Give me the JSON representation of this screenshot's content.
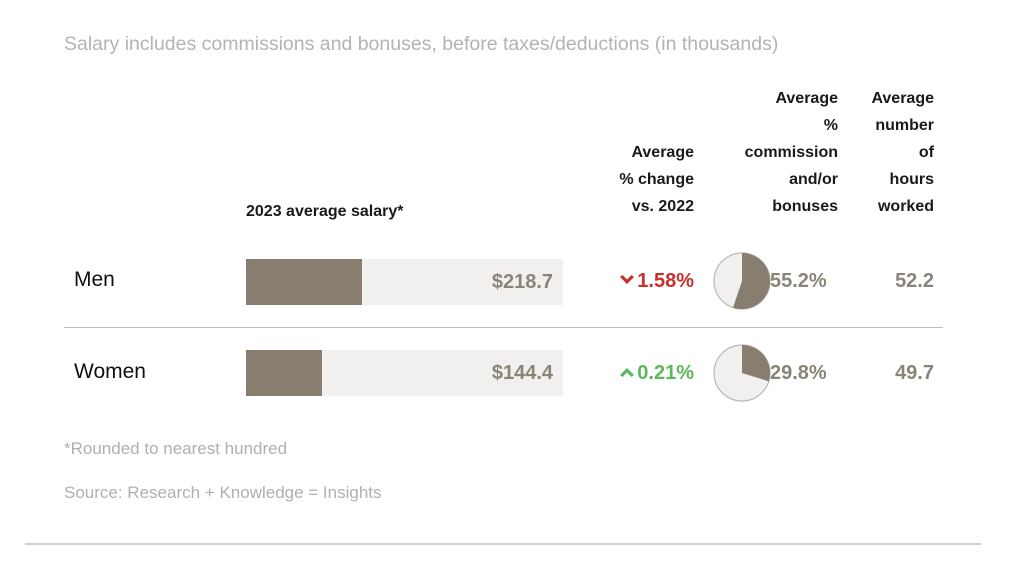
{
  "subtitle": "Salary includes commissions and bonuses, before taxes/deductions (in thousands)",
  "headers": {
    "salary": "2023 average salary*",
    "change": "Average\n% change\nvs. 2022",
    "commission": "Average\n%\ncommission\nand/or\nbonuses",
    "hours": "Average\nnumber\nof\nhours\nworked"
  },
  "colors": {
    "bar_fill": "#877e6f",
    "bar_track": "#f1f0ee",
    "value_text": "#8a8478",
    "decrease": "#c9302c",
    "increase": "#5cb85c",
    "pie_fill": "#877e6f",
    "pie_empty": "#f1f0ee"
  },
  "chart_data": {
    "type": "table",
    "title": "Salary includes commissions and bonuses, before taxes/deductions (in thousands)",
    "columns": [
      "",
      "2023 average salary*",
      "Average % change vs. 2022",
      "Average % commission and/or bonuses",
      "Average number of hours worked"
    ],
    "salary_scale_max": 600,
    "rows": [
      {
        "label": "Men",
        "salary": 218.7,
        "salary_text": "$218.7",
        "change": -1.58,
        "change_text": "1.58%",
        "change_direction": "down",
        "commission_pct": 55.2,
        "commission_text": "55.2%",
        "hours": 52.2,
        "hours_text": "52.2"
      },
      {
        "label": "Women",
        "salary": 144.4,
        "salary_text": "$144.4",
        "change": 0.21,
        "change_text": "0.21%",
        "change_direction": "up",
        "commission_pct": 29.8,
        "commission_text": "29.8%",
        "hours": 49.7,
        "hours_text": "49.7"
      }
    ]
  },
  "footnotes": {
    "rounding": "*Rounded to nearest hundred",
    "source": "Source: Research + Knowledge = Insights"
  }
}
